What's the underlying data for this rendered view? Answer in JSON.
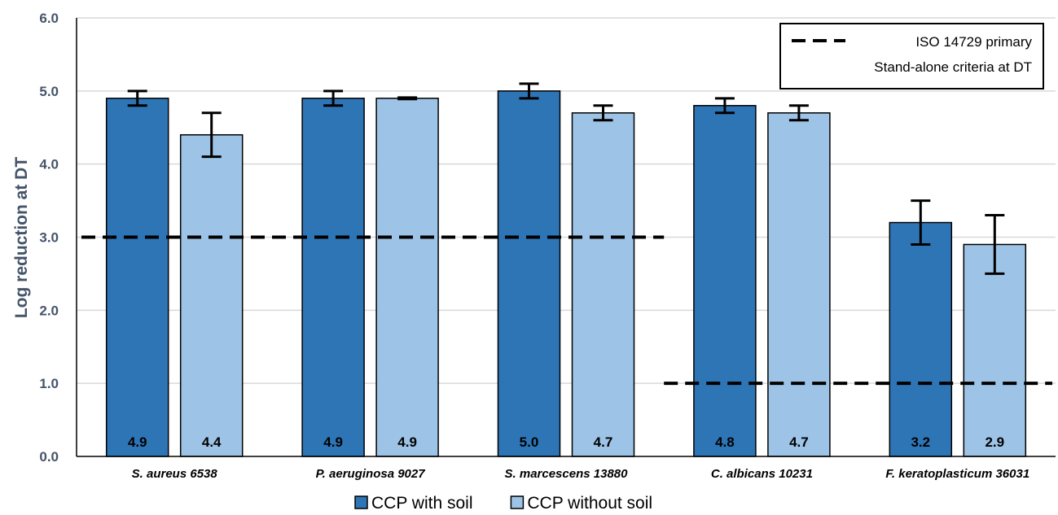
{
  "chart_data": {
    "type": "bar",
    "ylabel": "Log reduction at DT",
    "xlabel": "",
    "ylim": [
      0,
      6
    ],
    "yticks": [
      "0.0",
      "1.0",
      "2.0",
      "3.0",
      "4.0",
      "5.0",
      "6.0"
    ],
    "grid": true,
    "legend_position": "bottom",
    "categories": [
      "S. aureus 6538",
      "P. aeruginosa 9027",
      "S. marcescens 13880",
      "C. albicans 10231",
      "F. keratoplasticum 36031"
    ],
    "series": [
      {
        "name": "CCP with soil",
        "color": "#2e75b6",
        "values": [
          4.9,
          4.9,
          5.0,
          4.8,
          3.2
        ],
        "labels": [
          "4.9",
          "4.9",
          "5.0",
          "4.8",
          "3.2"
        ],
        "error": [
          0.1,
          0.1,
          0.1,
          0.1,
          0.3
        ]
      },
      {
        "name": "CCP without soil",
        "color": "#9dc3e6",
        "values": [
          4.4,
          4.9,
          4.7,
          4.7,
          2.9
        ],
        "labels": [
          "4.4",
          "4.9",
          "4.7",
          "4.7",
          "2.9"
        ],
        "error": [
          0.3,
          0.01,
          0.1,
          0.1,
          0.4
        ]
      }
    ],
    "reference_lines": [
      {
        "value": 3.0,
        "applies_to_categories": [
          0,
          1,
          2
        ]
      },
      {
        "value": 1.0,
        "applies_to_categories": [
          3,
          4
        ]
      }
    ],
    "reference_legend": {
      "line1": "ISO 14729 primary",
      "line2": "Stand-alone criteria at DT",
      "position": "top-right"
    }
  }
}
